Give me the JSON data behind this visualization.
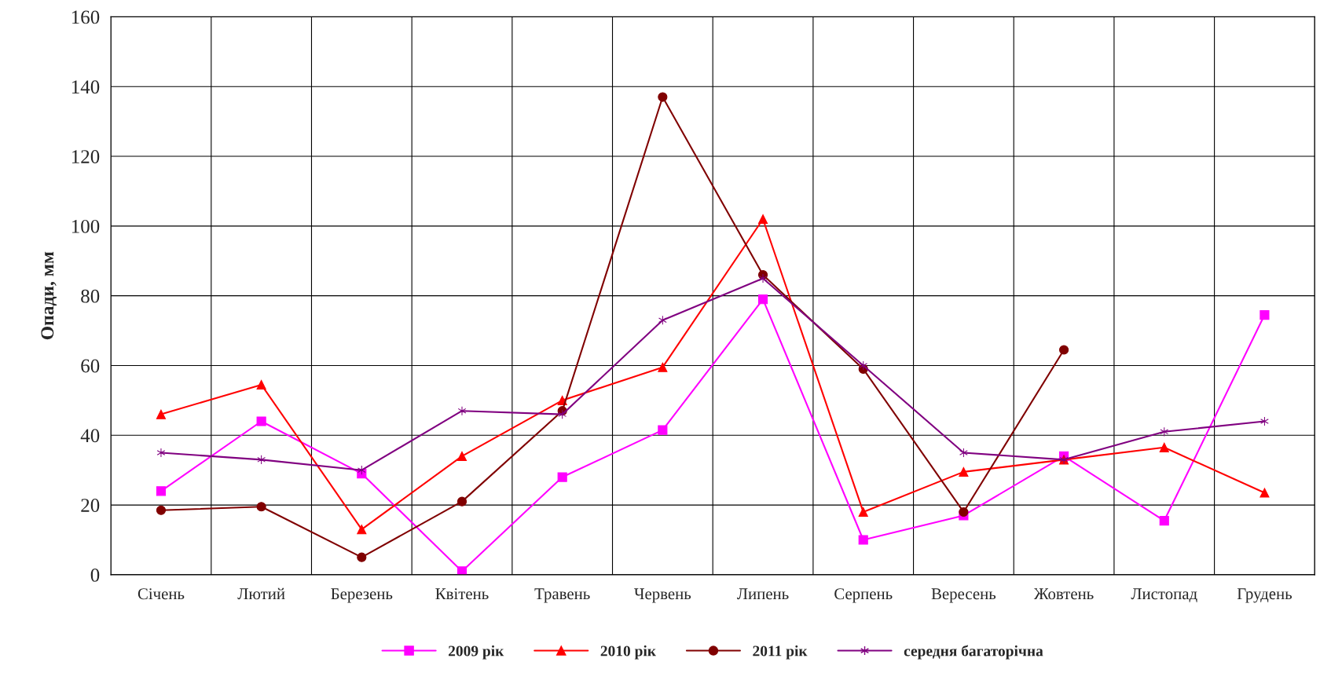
{
  "chart_data": {
    "type": "line",
    "ylabel": "Опади, мм",
    "categories": [
      "Січень",
      "Лютий",
      "Березень",
      "Квітень",
      "Травень",
      "Червень",
      "Липень",
      "Серпень",
      "Вересень",
      "Жовтень",
      "Листопад",
      "Грудень"
    ],
    "series": [
      {
        "name": "2009 рік",
        "color": "#ff00ff",
        "marker": "square",
        "values": [
          24,
          44,
          29,
          1,
          28,
          41.5,
          79,
          10,
          17,
          34,
          15.5,
          74.5
        ]
      },
      {
        "name": "2010 рік",
        "color": "#ff0000",
        "marker": "triangle",
        "values": [
          46,
          54.5,
          13,
          34,
          50,
          59.5,
          102,
          18,
          29.5,
          33,
          36.5,
          23.5
        ]
      },
      {
        "name": "2011 рік",
        "color": "#800000",
        "marker": "circle",
        "values": [
          18.5,
          19.5,
          5,
          21,
          47,
          137,
          86,
          59,
          18,
          64.5,
          null,
          null
        ]
      },
      {
        "name": "середня багаторічна",
        "color": "#800080",
        "marker": "cross",
        "values": [
          35,
          33,
          30,
          47,
          46,
          73,
          85,
          60,
          35,
          33,
          41,
          44
        ]
      }
    ],
    "ylim": [
      0,
      160
    ],
    "yticks": [
      0,
      20,
      40,
      60,
      80,
      100,
      120,
      140,
      160
    ],
    "grid": true,
    "legend": "bottom"
  }
}
